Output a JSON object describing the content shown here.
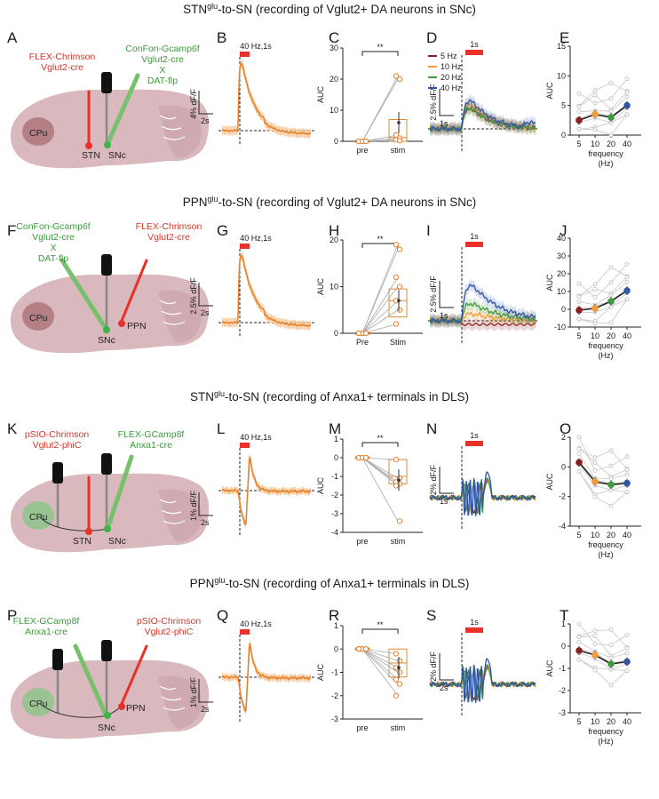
{
  "rows": [
    {
      "title_pre": "STN",
      "title_sup": "glu",
      "title_post": "-to-SN (recording of Vglut2+ DA neurons in SNc)",
      "letters": [
        "A",
        "B",
        "C",
        "D",
        "E"
      ],
      "opsin": [
        "FLEX-Chrimson",
        "Vglut2-cre"
      ],
      "sensor": [
        "ConFon-Gcamp6f",
        "Vglut2-cre",
        "X",
        "DAT-flp"
      ],
      "regions": [
        "CPu",
        "STN",
        "SNc"
      ],
      "stim_label": "40 Hz,1s",
      "yscale_trace": "4% dF/F",
      "time_trace": "2s",
      "auc_label": "AUC",
      "sig": "**",
      "xcats": [
        "pre",
        "stim"
      ],
      "freq_time": "1s",
      "freq_scale": "2.5% dF/F",
      "freq_scale_time": "1s",
      "legend": [
        "5 Hz",
        "10 Hz",
        "20 Hz",
        "40 Hz"
      ],
      "freq_ticks": [
        "5",
        "10",
        "20",
        "40"
      ],
      "freq_xlabel": [
        "frequency",
        "(Hz)"
      ]
    },
    {
      "title_pre": "PPN",
      "title_sup": "glu",
      "title_post": "-to-SN (recording of Vglut2+ DA neurons in SNc)",
      "letters": [
        "F",
        "G",
        "H",
        "I",
        "J"
      ],
      "sensor": [
        "ConFon-Gcamp6f",
        "Vglut2-cre",
        "X",
        "DAT-flp"
      ],
      "opsin": [
        "FLEX-Chrimson",
        "Vglut2-cre"
      ],
      "regions": [
        "CPu",
        "PPN",
        "SNc"
      ],
      "stim_label": "40 Hz,1s",
      "yscale_trace": "2.5% dF/F",
      "time_trace": "2s",
      "auc_label": "AUC",
      "sig": "**",
      "xcats": [
        "Pre",
        "Stim"
      ],
      "freq_time": "1s",
      "freq_scale": "2.5% dF/F",
      "freq_scale_time": "1s",
      "freq_ticks": [
        "5",
        "10",
        "20",
        "40"
      ],
      "freq_xlabel": [
        "frequency",
        "(Hz)"
      ]
    },
    {
      "title_pre": "STN",
      "title_sup": "glu",
      "title_post": "-to-SN (recording of Anxa1+ terminals in DLS)",
      "letters": [
        "K",
        "L",
        "M",
        "N",
        "O"
      ],
      "opsin": [
        "pSIO-Chrimson",
        "Vglut2-phiC"
      ],
      "sensor": [
        "FLEX-GCamp8f",
        "Anxa1-cre"
      ],
      "regions": [
        "CPu",
        "STN",
        "SNc"
      ],
      "stim_label": "40 Hz,1s",
      "yscale_trace": "1% dF/F",
      "time_trace": "2s",
      "auc_label": "AUC",
      "sig": "**",
      "xcats": [
        "pre",
        "stim"
      ],
      "freq_time": "1s",
      "freq_scale": "2% dF/F",
      "freq_scale_time": "1s",
      "freq_ticks": [
        "5",
        "10",
        "20",
        "40"
      ],
      "freq_xlabel": [
        "frequency",
        "(Hz)"
      ]
    },
    {
      "title_pre": "PPN",
      "title_sup": "glu",
      "title_post": "-to-SN (recording of Anxa1+ terminals in DLS)",
      "letters": [
        "P",
        "Q",
        "R",
        "S",
        "T"
      ],
      "sensor": [
        "FLEX-GCamp8f",
        "Anxa1-cre"
      ],
      "opsin": [
        "pSIO-Chrimson",
        "Vglut2-phiC"
      ],
      "regions": [
        "CPu",
        "PPN",
        "SNc"
      ],
      "stim_label": "40 Hz,1s",
      "yscale_trace": "1% dF/F",
      "time_trace": "2s",
      "auc_label": "AUC",
      "sig": "**",
      "xcats": [
        "pre",
        "stim"
      ],
      "freq_time": "1s",
      "freq_scale": "2% dF/F",
      "freq_scale_time": "2s",
      "freq_ticks": [
        "5",
        "10",
        "20",
        "40"
      ],
      "freq_xlabel": [
        "frequency",
        "(Hz)"
      ]
    }
  ],
  "colors": {
    "stim": "#e8312a",
    "trace": "#e8802a",
    "trace_band": "#f7c99a",
    "brain": "#d9b9bd",
    "striatum": "#b57f86",
    "green_region": "#8dc48c",
    "freq_5": "#8b1f1f",
    "freq_10": "#f39a34",
    "freq_20": "#3d9a3d",
    "freq_40": "#2f54a8"
  },
  "chart_data": [
    {
      "type": "scatter",
      "panel": "C",
      "ylabel": "AUC",
      "categories": [
        "pre",
        "stim"
      ],
      "ylim": [
        0,
        30
      ],
      "yticks": [
        0,
        10,
        20,
        30
      ],
      "sig": "**",
      "pre": [
        0,
        0,
        0,
        0,
        0,
        0
      ],
      "stim": [
        21,
        20,
        2,
        1,
        0.5,
        0.2
      ],
      "box": {
        "q1": 0,
        "median": 1.2,
        "q3": 7,
        "mean": 6
      }
    },
    {
      "type": "line",
      "panel": "E",
      "ylabel": "AUC",
      "xlabel": "frequency (Hz)",
      "x": [
        5,
        10,
        20,
        40
      ],
      "ylim": [
        0,
        15
      ],
      "yticks": [
        0,
        5,
        10,
        15
      ],
      "mean": [
        2.5,
        3.5,
        3.0,
        5.0
      ],
      "mean_colors": [
        "#8b1f1f",
        "#f39a34",
        "#3d9a3d",
        "#2f54a8"
      ]
    },
    {
      "type": "scatter",
      "panel": "H",
      "ylabel": "AUC",
      "categories": [
        "Pre",
        "Stim"
      ],
      "ylim": [
        0,
        20
      ],
      "yticks": [
        0,
        10,
        20
      ],
      "sig": "**",
      "pre": [
        0,
        0,
        0,
        0,
        0,
        0,
        0
      ],
      "stim": [
        19,
        18,
        12,
        10,
        7,
        5,
        2
      ],
      "box": {
        "q1": 3.5,
        "median": 7,
        "q3": 9.5,
        "mean": 7
      }
    },
    {
      "type": "line",
      "panel": "J",
      "ylabel": "AUC",
      "xlabel": "frequency (Hz)",
      "x": [
        5,
        10,
        20,
        40
      ],
      "ylim": [
        -10,
        40
      ],
      "yticks": [
        -10,
        0,
        10,
        20,
        30,
        40
      ],
      "mean": [
        -0.5,
        0.5,
        4.5,
        10.5
      ],
      "mean_colors": [
        "#8b1f1f",
        "#f39a34",
        "#3d9a3d",
        "#2f54a8"
      ]
    },
    {
      "type": "scatter",
      "panel": "M",
      "ylabel": "AUC",
      "categories": [
        "pre",
        "stim"
      ],
      "ylim": [
        -4,
        1
      ],
      "yticks": [
        -4,
        -3,
        -2,
        -1,
        0,
        1
      ],
      "sig": "**",
      "pre": [
        0,
        0,
        0,
        0,
        0,
        0
      ],
      "stim": [
        -0.1,
        -1.1,
        -1.3,
        -1.4,
        -1.5,
        -3.4
      ],
      "box": {
        "q1": -1.4,
        "median": -1.0,
        "q3": -0.1,
        "mean": -1.2
      }
    },
    {
      "type": "line",
      "panel": "O",
      "ylabel": "AUC",
      "xlabel": "frequency (Hz)",
      "x": [
        5,
        10,
        20,
        40
      ],
      "ylim": [
        -4,
        2
      ],
      "yticks": [
        -4,
        -2,
        0,
        2
      ],
      "mean": [
        0.3,
        -1.0,
        -1.2,
        -1.1
      ],
      "mean_colors": [
        "#8b1f1f",
        "#f39a34",
        "#3d9a3d",
        "#2f54a8"
      ]
    },
    {
      "type": "scatter",
      "panel": "R",
      "ylabel": "AUC",
      "categories": [
        "pre",
        "stim"
      ],
      "ylim": [
        -3,
        1
      ],
      "yticks": [
        -3,
        -2,
        -1,
        0,
        1
      ],
      "sig": "**",
      "pre": [
        0,
        0,
        0,
        0,
        0,
        0,
        0
      ],
      "stim": [
        -0.2,
        -0.5,
        -0.8,
        -1.0,
        -1.3,
        -1.5,
        -2.0
      ],
      "box": {
        "q1": -1.2,
        "median": -0.6,
        "q3": 0,
        "mean": -0.8
      }
    },
    {
      "type": "line",
      "panel": "T",
      "ylabel": "AUC",
      "xlabel": "frequency (Hz)",
      "x": [
        5,
        10,
        20,
        40
      ],
      "ylim": [
        -3,
        1
      ],
      "yticks": [
        -3,
        -2,
        -1,
        0,
        1
      ],
      "mean": [
        -0.2,
        -0.4,
        -0.8,
        -0.7
      ],
      "mean_colors": [
        "#8b1f1f",
        "#f39a34",
        "#3d9a3d",
        "#2f54a8"
      ]
    }
  ]
}
